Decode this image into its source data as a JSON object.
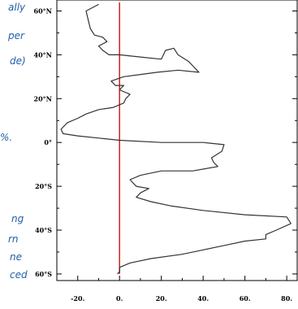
{
  "caption_fragments": [
    {
      "text": "ally",
      "top": 0
    },
    {
      "text": "per",
      "top": 0
    },
    {
      "text": "de)",
      "top": 0
    },
    {
      "text": "%.",
      "top": 0
    },
    {
      "text": "ng",
      "top": 0
    },
    {
      "text": "rn",
      "top": 0
    },
    {
      "text": "ne",
      "top": 0
    },
    {
      "text": "ced",
      "top": 0
    }
  ],
  "chart_data": {
    "type": "line",
    "title": "",
    "xlabel": "",
    "ylabel": "",
    "xlim": [
      -30,
      85
    ],
    "ylim": [
      -63,
      65
    ],
    "x_ticks": [
      -20,
      0,
      20,
      40,
      60,
      80
    ],
    "x_tick_labels": [
      "-20.",
      "0.",
      "20.",
      "40.",
      "60.",
      "80."
    ],
    "y_ticks": [
      60,
      40,
      20,
      0,
      -20,
      -40,
      -60
    ],
    "y_tick_labels": [
      "60°N",
      "40°N",
      "20°N",
      "0°",
      "20°S",
      "40°S",
      "60°S"
    ],
    "reference_line_x": 0,
    "colors": {
      "series": "#333333",
      "reference": "#cc2222",
      "caption": "#1f5fa8"
    },
    "series": [
      {
        "points": [
          [
            -10,
            63
          ],
          [
            -16,
            60
          ],
          [
            -15,
            56
          ],
          [
            -14,
            52
          ],
          [
            -12,
            49
          ],
          [
            -8,
            48
          ],
          [
            -6,
            46
          ],
          [
            -10,
            44
          ],
          [
            -8,
            42
          ],
          [
            -5,
            40
          ],
          [
            0,
            40
          ],
          [
            10,
            39
          ],
          [
            20,
            38
          ],
          [
            22,
            42
          ],
          [
            26,
            43
          ],
          [
            28,
            40
          ],
          [
            33,
            37
          ],
          [
            38,
            32
          ],
          [
            28,
            33
          ],
          [
            18,
            32
          ],
          [
            10,
            31
          ],
          [
            2,
            30
          ],
          [
            -4,
            28
          ],
          [
            -2,
            26
          ],
          [
            2,
            26
          ],
          [
            0,
            24
          ],
          [
            5,
            22
          ],
          [
            3,
            20
          ],
          [
            2,
            18
          ],
          [
            -3,
            16
          ],
          [
            -10,
            15
          ],
          [
            -16,
            13
          ],
          [
            -20,
            11
          ],
          [
            -25,
            9
          ],
          [
            -28,
            6
          ],
          [
            -27,
            4
          ],
          [
            -20,
            3
          ],
          [
            -10,
            2
          ],
          [
            0,
            1
          ],
          [
            20,
            0
          ],
          [
            40,
            0
          ],
          [
            50,
            -1
          ],
          [
            49,
            -4
          ],
          [
            44,
            -7
          ],
          [
            45,
            -9
          ],
          [
            47,
            -11
          ],
          [
            35,
            -13
          ],
          [
            20,
            -13
          ],
          [
            10,
            -15
          ],
          [
            5,
            -17
          ],
          [
            8,
            -20
          ],
          [
            14,
            -21
          ],
          [
            10,
            -23
          ],
          [
            8,
            -25
          ],
          [
            15,
            -27
          ],
          [
            25,
            -29
          ],
          [
            40,
            -31
          ],
          [
            60,
            -33
          ],
          [
            80,
            -34
          ],
          [
            82,
            -37
          ],
          [
            75,
            -40
          ],
          [
            70,
            -42
          ],
          [
            70,
            -44
          ],
          [
            60,
            -45
          ],
          [
            50,
            -47
          ],
          [
            40,
            -49
          ],
          [
            30,
            -51
          ],
          [
            15,
            -53
          ],
          [
            5,
            -55
          ],
          [
            0,
            -57
          ],
          [
            0,
            -59
          ],
          [
            -1,
            -60
          ]
        ]
      }
    ]
  }
}
